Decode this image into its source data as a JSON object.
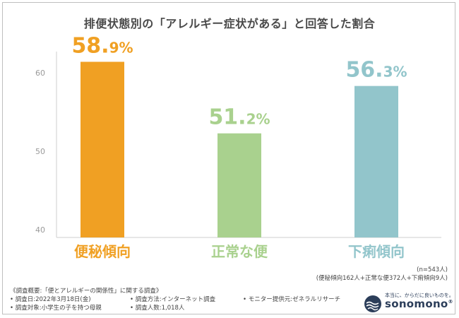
{
  "title": "排便状態別の「アレルギー症状がある」と回答した割合",
  "chart_data": {
    "type": "bar",
    "categories": [
      "便秘傾向",
      "正常な便",
      "下痢傾向"
    ],
    "values": [
      58.9,
      51.2,
      56.3
    ],
    "value_labels": [
      {
        "main": "58.",
        "dec": "9%"
      },
      {
        "main": "51.",
        "dec": "2%"
      },
      {
        "main": "56.",
        "dec": "3%"
      }
    ],
    "colors": [
      "#f0a023",
      "#a9d18e",
      "#92c5cb"
    ],
    "ylim": [
      40,
      60
    ],
    "yticks": [
      "40",
      "50",
      "60"
    ],
    "grid": false,
    "legend": "none"
  },
  "sample": {
    "n": "(n=543人)",
    "breakdown": "(便秘傾向162人+正常な便372人+下痢傾向9人)"
  },
  "survey": {
    "header": "《調査概要:「便とアレルギーの関係性」に関する調査》",
    "date": "• 調査日:2022年3月18日(金)",
    "method": "• 調査方法:インターネット調査",
    "provider": "• モニター提供元:ゼネラルリサーチ",
    "target": "• 調査対象:小学生の子を持つ母親",
    "count": "• 調査人数:1,018人"
  },
  "logo": {
    "tagline": "本当に、からだに良いものを。",
    "brand": "sonomono",
    "reg": "®",
    "icon": "wave-circle-icon"
  }
}
